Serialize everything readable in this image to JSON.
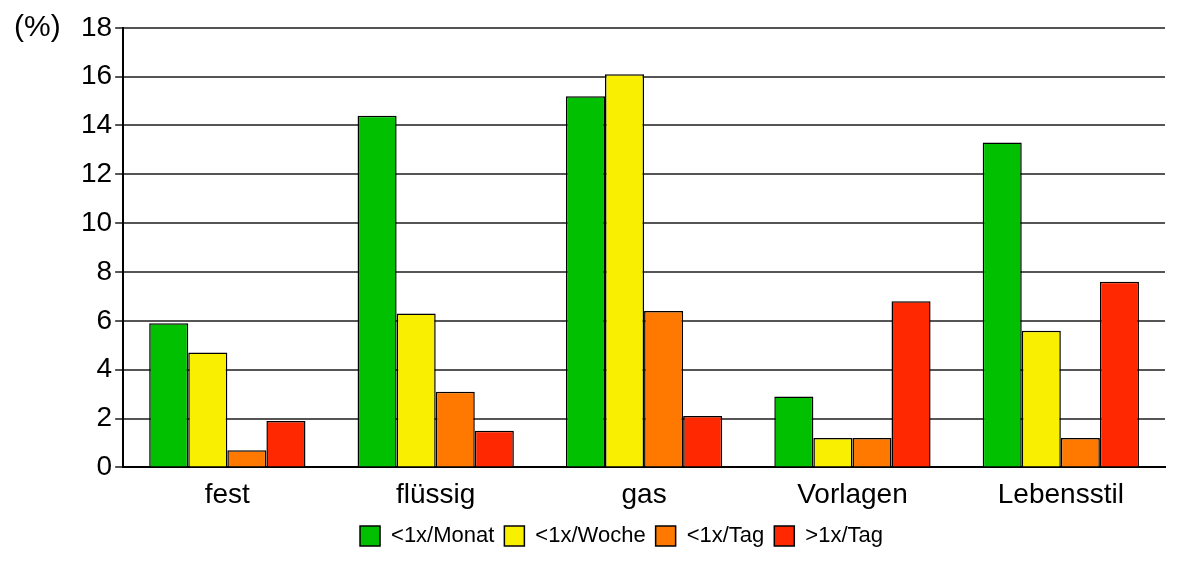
{
  "chart_data": {
    "type": "bar",
    "ylabel": "(%)",
    "categories": [
      "fest",
      "flüssig",
      "gas",
      "Vorlagen",
      "Lebensstil"
    ],
    "series": [
      {
        "name": "<1x/Monat",
        "color": "#00c000",
        "values": [
          5.9,
          14.4,
          15.2,
          2.9,
          13.3
        ]
      },
      {
        "name": "<1x/Woche",
        "color": "#f8f000",
        "values": [
          4.7,
          6.3,
          16.1,
          1.2,
          5.6
        ]
      },
      {
        "name": "<1x/Tag",
        "color": "#ff7800",
        "values": [
          0.7,
          3.1,
          6.4,
          1.2,
          1.2
        ]
      },
      {
        "name": ">1x/Tag",
        "color": "#ff2800",
        "values": [
          1.9,
          1.5,
          2.1,
          6.8,
          7.6
        ]
      }
    ],
    "ylim": [
      0,
      18
    ],
    "yticks": [
      0,
      2,
      4,
      6,
      8,
      10,
      12,
      14,
      16,
      18
    ],
    "grid": "y",
    "legend": "bottom"
  }
}
